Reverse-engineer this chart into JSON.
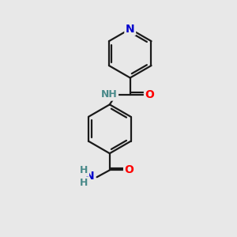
{
  "bg_color": "#e8e8e8",
  "bond_color": "#1a1a1a",
  "N_color": "#0000cc",
  "O_color": "#ff0000",
  "NH_color": "#4a8a8a",
  "line_width": 1.6,
  "fig_size": [
    3.0,
    3.0
  ],
  "dpi": 100,
  "xlim": [
    0,
    10
  ],
  "ylim": [
    0,
    10
  ]
}
